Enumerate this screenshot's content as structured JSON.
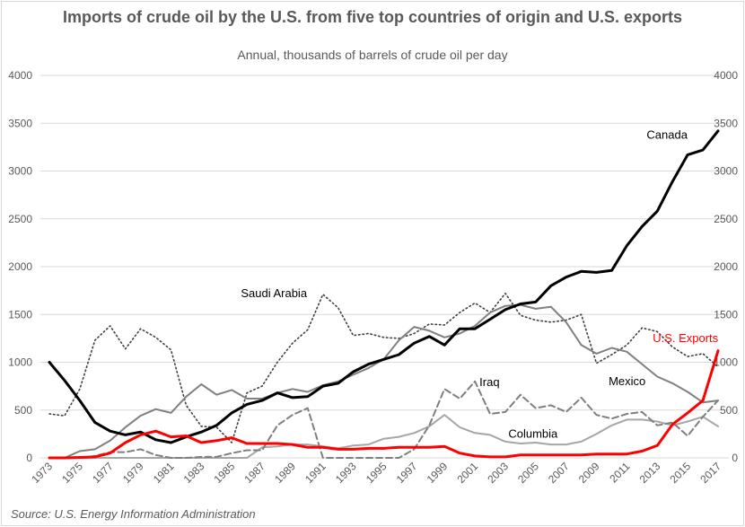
{
  "chart_data": {
    "type": "line",
    "title": "Imports of crude oil by the U.S. from five top countries of origin and U.S. exports",
    "subtitle": "Annual, thousands of barrels of crude oil per day",
    "source": "Source: U.S. Energy Information Administration",
    "xlabel": "",
    "ylabel": "",
    "ylim": [
      0,
      4000
    ],
    "yticks": [
      0,
      500,
      1000,
      1500,
      2000,
      2500,
      3000,
      3500,
      4000
    ],
    "grid": true,
    "legend": "inline-labels",
    "x": [
      1973,
      1974,
      1975,
      1976,
      1977,
      1978,
      1979,
      1980,
      1981,
      1982,
      1983,
      1984,
      1985,
      1986,
      1987,
      1988,
      1989,
      1990,
      1991,
      1992,
      1993,
      1994,
      1995,
      1996,
      1997,
      1998,
      1999,
      2000,
      2001,
      2002,
      2003,
      2004,
      2005,
      2006,
      2007,
      2008,
      2009,
      2010,
      2011,
      2012,
      2013,
      2014,
      2015,
      2016,
      2017
    ],
    "xtick_labels": [
      "1973",
      "1975",
      "1977",
      "1979",
      "1981",
      "1983",
      "1985",
      "1987",
      "1989",
      "1991",
      "1993",
      "1995",
      "1997",
      "1999",
      "2001",
      "2003",
      "2005",
      "2007",
      "2009",
      "2011",
      "2013",
      "2015",
      "2017"
    ],
    "series": [
      {
        "name": "Canada",
        "label": "Canada",
        "color": "#000000",
        "style": "solid-thick",
        "values": [
          1000,
          810,
          600,
          370,
          280,
          240,
          270,
          190,
          160,
          220,
          270,
          340,
          470,
          560,
          600,
          680,
          630,
          640,
          750,
          780,
          900,
          980,
          1030,
          1080,
          1200,
          1270,
          1180,
          1350,
          1350,
          1450,
          1550,
          1610,
          1630,
          1800,
          1890,
          1950,
          1940,
          1960,
          2220,
          2420,
          2580,
          2890,
          3170,
          3220,
          3420
        ]
      },
      {
        "name": "Mexico",
        "label": "Mexico",
        "color": "#808080",
        "style": "solid",
        "values": [
          0,
          0,
          70,
          90,
          180,
          320,
          440,
          510,
          470,
          640,
          770,
          660,
          710,
          620,
          620,
          680,
          720,
          690,
          760,
          800,
          870,
          940,
          1030,
          1230,
          1370,
          1330,
          1260,
          1300,
          1380,
          1520,
          1590,
          1600,
          1560,
          1580,
          1420,
          1180,
          1090,
          1150,
          1110,
          980,
          850,
          780,
          690,
          580,
          600
        ]
      },
      {
        "name": "Saudi Arabia",
        "label": "Saudi Arabia",
        "color": "#404040",
        "style": "dotted",
        "values": [
          460,
          440,
          720,
          1230,
          1380,
          1140,
          1350,
          1260,
          1130,
          550,
          330,
          320,
          160,
          680,
          750,
          1000,
          1200,
          1340,
          1710,
          1570,
          1280,
          1300,
          1260,
          1250,
          1300,
          1400,
          1390,
          1520,
          1620,
          1520,
          1720,
          1490,
          1440,
          1420,
          1440,
          1500,
          990,
          1080,
          1180,
          1360,
          1320,
          1160,
          1060,
          1090,
          950
        ]
      },
      {
        "name": "Iraq",
        "label": "Iraq",
        "color": "#7f7f7f",
        "style": "dashed",
        "values": [
          0,
          0,
          0,
          20,
          60,
          60,
          90,
          30,
          0,
          0,
          10,
          10,
          50,
          80,
          80,
          340,
          450,
          520,
          0,
          0,
          0,
          0,
          0,
          0,
          90,
          340,
          720,
          620,
          800,
          460,
          480,
          660,
          520,
          550,
          480,
          630,
          450,
          410,
          460,
          480,
          340,
          370,
          230,
          430,
          600
        ]
      },
      {
        "name": "Columbia",
        "label": "Columbia",
        "color": "#a6a6a6",
        "style": "solid",
        "values": [
          0,
          0,
          0,
          0,
          0,
          0,
          0,
          0,
          0,
          0,
          0,
          0,
          0,
          0,
          110,
          120,
          140,
          140,
          120,
          100,
          130,
          140,
          200,
          220,
          260,
          330,
          450,
          320,
          260,
          240,
          170,
          150,
          160,
          140,
          140,
          170,
          250,
          340,
          400,
          400,
          380,
          340,
          380,
          430,
          330
        ]
      },
      {
        "name": "U.S. Exports",
        "label": "U.S. Exports",
        "color": "#ff0000",
        "style": "solid-thick",
        "values": [
          0,
          0,
          5,
          10,
          50,
          160,
          240,
          280,
          220,
          230,
          160,
          180,
          210,
          150,
          150,
          150,
          140,
          110,
          110,
          90,
          90,
          100,
          100,
          110,
          110,
          110,
          120,
          50,
          20,
          10,
          10,
          30,
          30,
          30,
          30,
          30,
          40,
          40,
          40,
          70,
          130,
          350,
          470,
          600,
          1120
        ]
      }
    ]
  }
}
